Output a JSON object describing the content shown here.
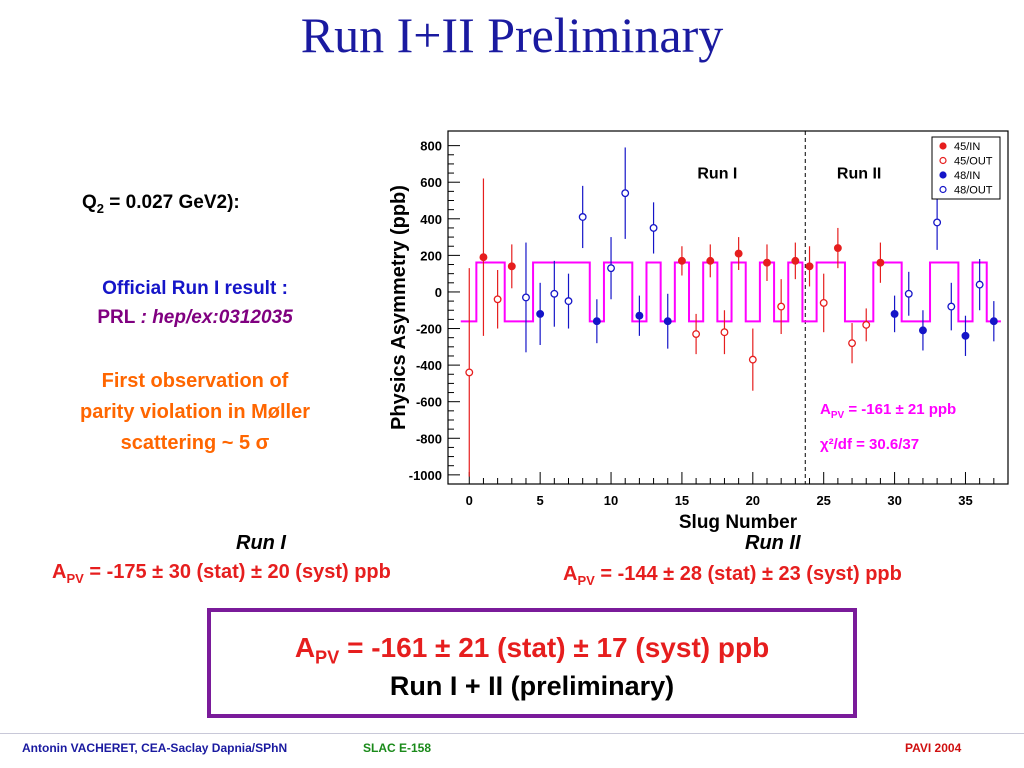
{
  "title": "Run I+II Preliminary",
  "q2_text": "Q",
  "q2_sub": "2",
  "q2_rest": " = 0.027 GeV2):",
  "official_line": "Official Run I result :",
  "prl_label": "PRL",
  "prl_ref": " : hep/ex:0312035",
  "first_obs": [
    "First observation of",
    "parity violation in Møller",
    "scattering ~ 5 σ"
  ],
  "run1": {
    "label": "Run I",
    "apv": "A",
    "apv_sub": "PV",
    "value": " = -175 ± 30 (stat) ± 20 (syst) ppb"
  },
  "run2": {
    "label": "Run II",
    "apv": "A",
    "apv_sub": "PV",
    "value": " = -144 ± 28 (stat) ± 23 (syst) ppb"
  },
  "result_box": {
    "apv": "A",
    "apv_sub": "PV",
    "line1": " = -161 ± 21 (stat) ± 17 (syst) ppb",
    "line2": "Run I + II (preliminary)"
  },
  "footer": {
    "left": "Antonin VACHERET,  CEA-Saclay  Dapnia/SPhN",
    "middle": "SLAC E-158",
    "right": "PAVI 2004"
  },
  "colors": {
    "title": "#1a1aa0",
    "red": "#e61e1e",
    "blue": "#1515c8",
    "magenta": "#ff00ff",
    "orange": "#ff6600",
    "box_border": "#7a1b9a"
  },
  "chart_data": {
    "type": "scatter",
    "xlabel": "Slug Number",
    "ylabel": "Physics Asymmetry (ppb)",
    "xlim": [
      -1.5,
      38
    ],
    "ylim": [
      -1050,
      880
    ],
    "xticks": [
      0,
      5,
      10,
      15,
      20,
      25,
      30,
      35
    ],
    "yticks": [
      -1000,
      -800,
      -600,
      -400,
      -200,
      0,
      200,
      400,
      600,
      800
    ],
    "run_divider_x": 23.7,
    "region_labels": [
      "Run I",
      "Run II"
    ],
    "fit_annotation_apv": "A",
    "fit_annotation_sub": "PV",
    "fit_annotation_value": " = -161 ± 21 ppb",
    "chi2_annotation": "χ²/df = 30.6/37",
    "legend_position": "top-right",
    "series": [
      {
        "name": "45/IN",
        "color": "#e61e1e",
        "filled": true,
        "points": [
          [
            1,
            190,
            430
          ],
          [
            3,
            140,
            120
          ],
          [
            15,
            170,
            80
          ],
          [
            17,
            170,
            90
          ],
          [
            19,
            210,
            90
          ],
          [
            21,
            160,
            100
          ],
          [
            23,
            170,
            100
          ],
          [
            24,
            140,
            110
          ],
          [
            26,
            240,
            110
          ],
          [
            29,
            160,
            110
          ]
        ]
      },
      {
        "name": "45/OUT",
        "color": "#e61e1e",
        "filled": false,
        "points": [
          [
            0,
            -440,
            570
          ],
          [
            2,
            -40,
            160
          ],
          [
            16,
            -230,
            110
          ],
          [
            18,
            -220,
            120
          ],
          [
            20,
            -370,
            170
          ],
          [
            22,
            -80,
            150
          ],
          [
            25,
            -60,
            160
          ],
          [
            27,
            -280,
            110
          ],
          [
            28,
            -180,
            90
          ]
        ]
      },
      {
        "name": "48/IN",
        "color": "#1515c8",
        "filled": true,
        "points": [
          [
            5,
            -120,
            170
          ],
          [
            9,
            -160,
            120
          ],
          [
            12,
            -130,
            110
          ],
          [
            14,
            -160,
            150
          ],
          [
            30,
            -120,
            100
          ],
          [
            32,
            -210,
            110
          ],
          [
            35,
            -240,
            110
          ],
          [
            37,
            -160,
            110
          ]
        ]
      },
      {
        "name": "48/OUT",
        "color": "#1515c8",
        "filled": false,
        "points": [
          [
            4,
            -30,
            300
          ],
          [
            6,
            -10,
            180
          ],
          [
            7,
            -50,
            150
          ],
          [
            8,
            410,
            170
          ],
          [
            10,
            130,
            170
          ],
          [
            11,
            540,
            250
          ],
          [
            13,
            350,
            140
          ],
          [
            31,
            -10,
            120
          ],
          [
            34,
            -80,
            130
          ],
          [
            33,
            380,
            150
          ],
          [
            36,
            40,
            140
          ]
        ]
      }
    ],
    "step_function": [
      {
        "x0": -0.6,
        "x1": 0.5,
        "y": -161
      },
      {
        "x0": 0.5,
        "x1": 2.5,
        "y": 161
      },
      {
        "x0": 2.5,
        "x1": 4.5,
        "y": -161
      },
      {
        "x0": 4.5,
        "x1": 8.5,
        "y": 161
      },
      {
        "x0": 8.5,
        "x1": 9.5,
        "y": -161
      },
      {
        "x0": 9.5,
        "x1": 11.5,
        "y": 161
      },
      {
        "x0": 11.5,
        "x1": 12.5,
        "y": -161
      },
      {
        "x0": 12.5,
        "x1": 13.5,
        "y": 161
      },
      {
        "x0": 13.5,
        "x1": 14.5,
        "y": -161
      },
      {
        "x0": 14.5,
        "x1": 15.5,
        "y": 161
      },
      {
        "x0": 15.5,
        "x1": 16.5,
        "y": -161
      },
      {
        "x0": 16.5,
        "x1": 17.5,
        "y": 161
      },
      {
        "x0": 17.5,
        "x1": 18.5,
        "y": -161
      },
      {
        "x0": 18.5,
        "x1": 19.5,
        "y": 161
      },
      {
        "x0": 19.5,
        "x1": 20.5,
        "y": -161
      },
      {
        "x0": 20.5,
        "x1": 21.5,
        "y": 161
      },
      {
        "x0": 21.5,
        "x1": 22.5,
        "y": -161
      },
      {
        "x0": 22.5,
        "x1": 23.5,
        "y": 161
      },
      {
        "x0": 23.5,
        "x1": 24.5,
        "y": -161
      },
      {
        "x0": 24.5,
        "x1": 26.5,
        "y": 161
      },
      {
        "x0": 26.5,
        "x1": 28.5,
        "y": -161
      },
      {
        "x0": 28.5,
        "x1": 30.5,
        "y": 161
      },
      {
        "x0": 30.5,
        "x1": 32.5,
        "y": -161
      },
      {
        "x0": 32.5,
        "x1": 34.5,
        "y": 161
      },
      {
        "x0": 34.5,
        "x1": 35.5,
        "y": -161
      },
      {
        "x0": 35.5,
        "x1": 36.5,
        "y": 161
      },
      {
        "x0": 36.5,
        "x1": 37.5,
        "y": -161
      }
    ]
  }
}
